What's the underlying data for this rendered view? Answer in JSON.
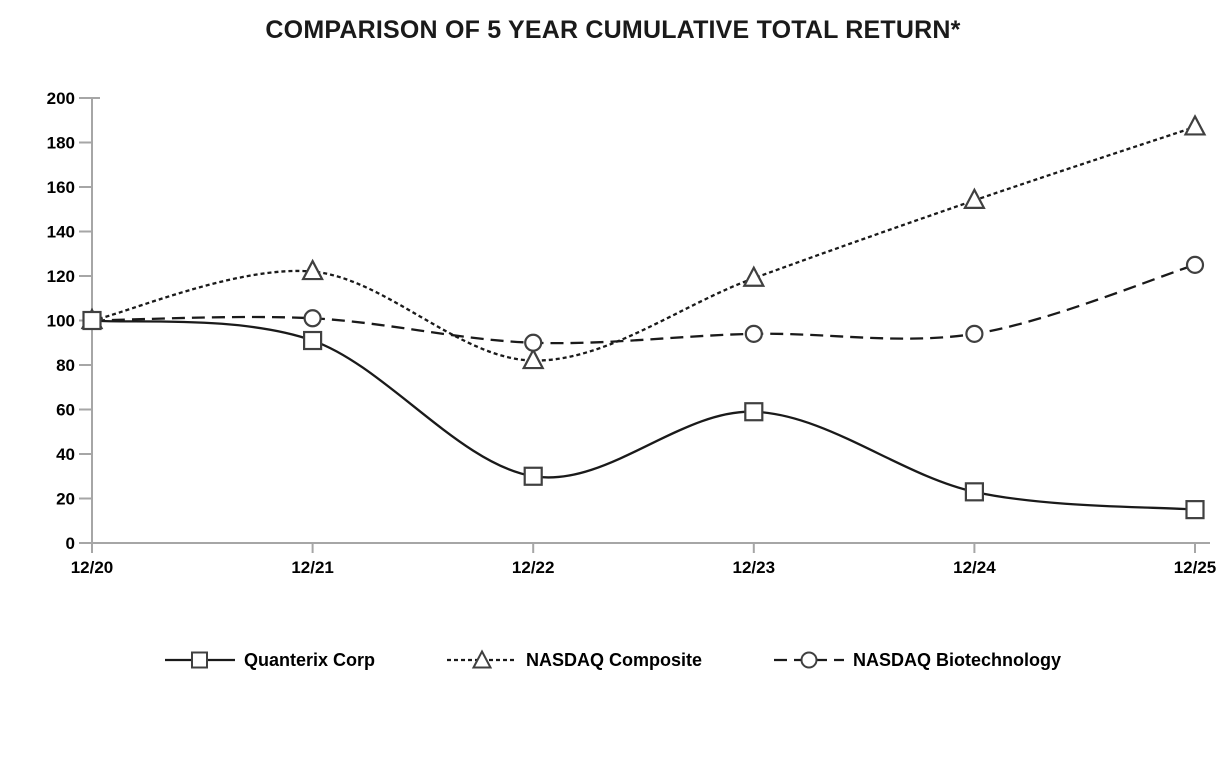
{
  "chart_data": {
    "type": "line",
    "title": "COMPARISON OF 5 YEAR CUMULATIVE TOTAL RETURN*",
    "categories": [
      "12/20",
      "12/21",
      "12/22",
      "12/23",
      "12/24",
      "12/25"
    ],
    "series": [
      {
        "name": "Quanterix Corp",
        "marker": "square",
        "line_style": "solid",
        "values": [
          100,
          91,
          30,
          59,
          23,
          15
        ]
      },
      {
        "name": "NASDAQ Composite",
        "marker": "triangle",
        "line_style": "dotted",
        "values": [
          100,
          122,
          82,
          119,
          154,
          187
        ]
      },
      {
        "name": "NASDAQ Biotechnology",
        "marker": "circle",
        "line_style": "dashed",
        "values": [
          100,
          101,
          90,
          94,
          94,
          125
        ]
      }
    ],
    "xlabel": "",
    "ylabel": "",
    "ylim": [
      0,
      200
    ],
    "y_ticks": [
      0,
      20,
      40,
      60,
      80,
      100,
      120,
      140,
      160,
      180,
      200
    ],
    "grid": false,
    "legend_position": "bottom",
    "smooth_lines": true,
    "colors": {
      "line": "#1a1a1a",
      "marker_stroke": "#404040",
      "marker_fill": "#ffffff",
      "axis": "#a6a6a6",
      "text": "#000000"
    }
  }
}
